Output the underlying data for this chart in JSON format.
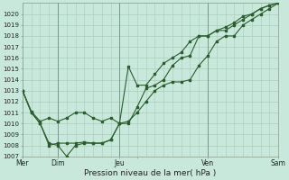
{
  "background_color": "#c8e8dc",
  "grid_color": "#a8ccbc",
  "line_color": "#2a5f2a",
  "xlabel": "Pression niveau de la mer( hPa )",
  "ylim": [
    1007,
    1021
  ],
  "xlim": [
    0,
    14.5
  ],
  "vlines": [
    2.0,
    5.5,
    10.5,
    14.5
  ],
  "xtick_pos": [
    0.0,
    2.0,
    5.5,
    6.5,
    10.5,
    14.5
  ],
  "xtick_lab": [
    "Mer",
    "Dim",
    "Jeu",
    "",
    "Ven",
    "Sam"
  ],
  "series1_x": [
    0.0,
    0.5,
    1.0,
    1.5,
    2.0,
    2.5,
    3.0,
    3.5,
    4.0,
    4.5,
    5.0,
    5.5,
    6.0,
    6.5,
    7.0,
    7.5,
    8.0,
    8.5,
    9.0,
    9.5,
    10.0,
    10.5,
    11.0,
    11.5,
    12.0,
    12.5,
    13.0,
    13.5,
    14.0,
    14.5
  ],
  "series1_y": [
    1013.0,
    1011.1,
    1010.2,
    1010.5,
    1010.2,
    1010.5,
    1011.0,
    1011.0,
    1010.5,
    1010.2,
    1010.5,
    1010.0,
    1010.2,
    1011.0,
    1012.0,
    1013.0,
    1013.5,
    1013.8,
    1013.8,
    1014.0,
    1015.3,
    1016.2,
    1017.5,
    1018.0,
    1018.0,
    1019.0,
    1019.5,
    1020.0,
    1020.5,
    1021.0
  ],
  "series2_x": [
    0.0,
    0.5,
    1.0,
    1.5,
    2.0,
    2.5,
    3.0,
    3.5,
    4.0,
    4.5,
    5.0,
    5.5,
    6.0,
    6.5,
    7.0,
    7.5,
    8.0,
    8.5,
    9.0,
    9.5,
    10.0,
    10.5,
    11.0,
    11.5,
    12.0,
    12.5,
    13.0,
    13.5,
    14.0,
    14.5
  ],
  "series2_y": [
    1013.0,
    1011.0,
    1010.0,
    1008.0,
    1008.2,
    1008.2,
    1008.2,
    1008.3,
    1008.2,
    1008.2,
    1008.5,
    1010.0,
    1010.0,
    1011.5,
    1013.2,
    1013.5,
    1014.0,
    1015.3,
    1016.0,
    1016.2,
    1018.0,
    1018.0,
    1018.5,
    1018.8,
    1019.2,
    1019.8,
    1020.0,
    1020.5,
    1020.8,
    1021.0
  ],
  "series3_x": [
    0.0,
    0.5,
    1.0,
    1.5,
    2.0,
    2.5,
    3.0,
    3.5,
    4.0,
    4.5,
    5.0,
    5.5,
    6.0,
    6.5,
    7.0,
    7.5,
    8.0,
    8.5,
    9.0,
    9.5,
    10.0,
    10.5,
    11.0,
    11.5,
    12.0,
    12.5,
    13.0,
    13.5,
    14.0,
    14.5
  ],
  "series3_y": [
    1013.0,
    1011.0,
    1010.0,
    1008.2,
    1008.0,
    1007.0,
    1008.0,
    1008.2,
    1008.2,
    1008.2,
    1008.5,
    1010.0,
    1015.2,
    1013.5,
    1013.5,
    1014.5,
    1015.5,
    1016.0,
    1016.5,
    1017.5,
    1018.0,
    1018.0,
    1018.5,
    1018.5,
    1019.0,
    1019.5,
    1020.0,
    1020.5,
    1020.8,
    1021.0
  ],
  "figsize": [
    3.2,
    2.0
  ],
  "dpi": 100
}
